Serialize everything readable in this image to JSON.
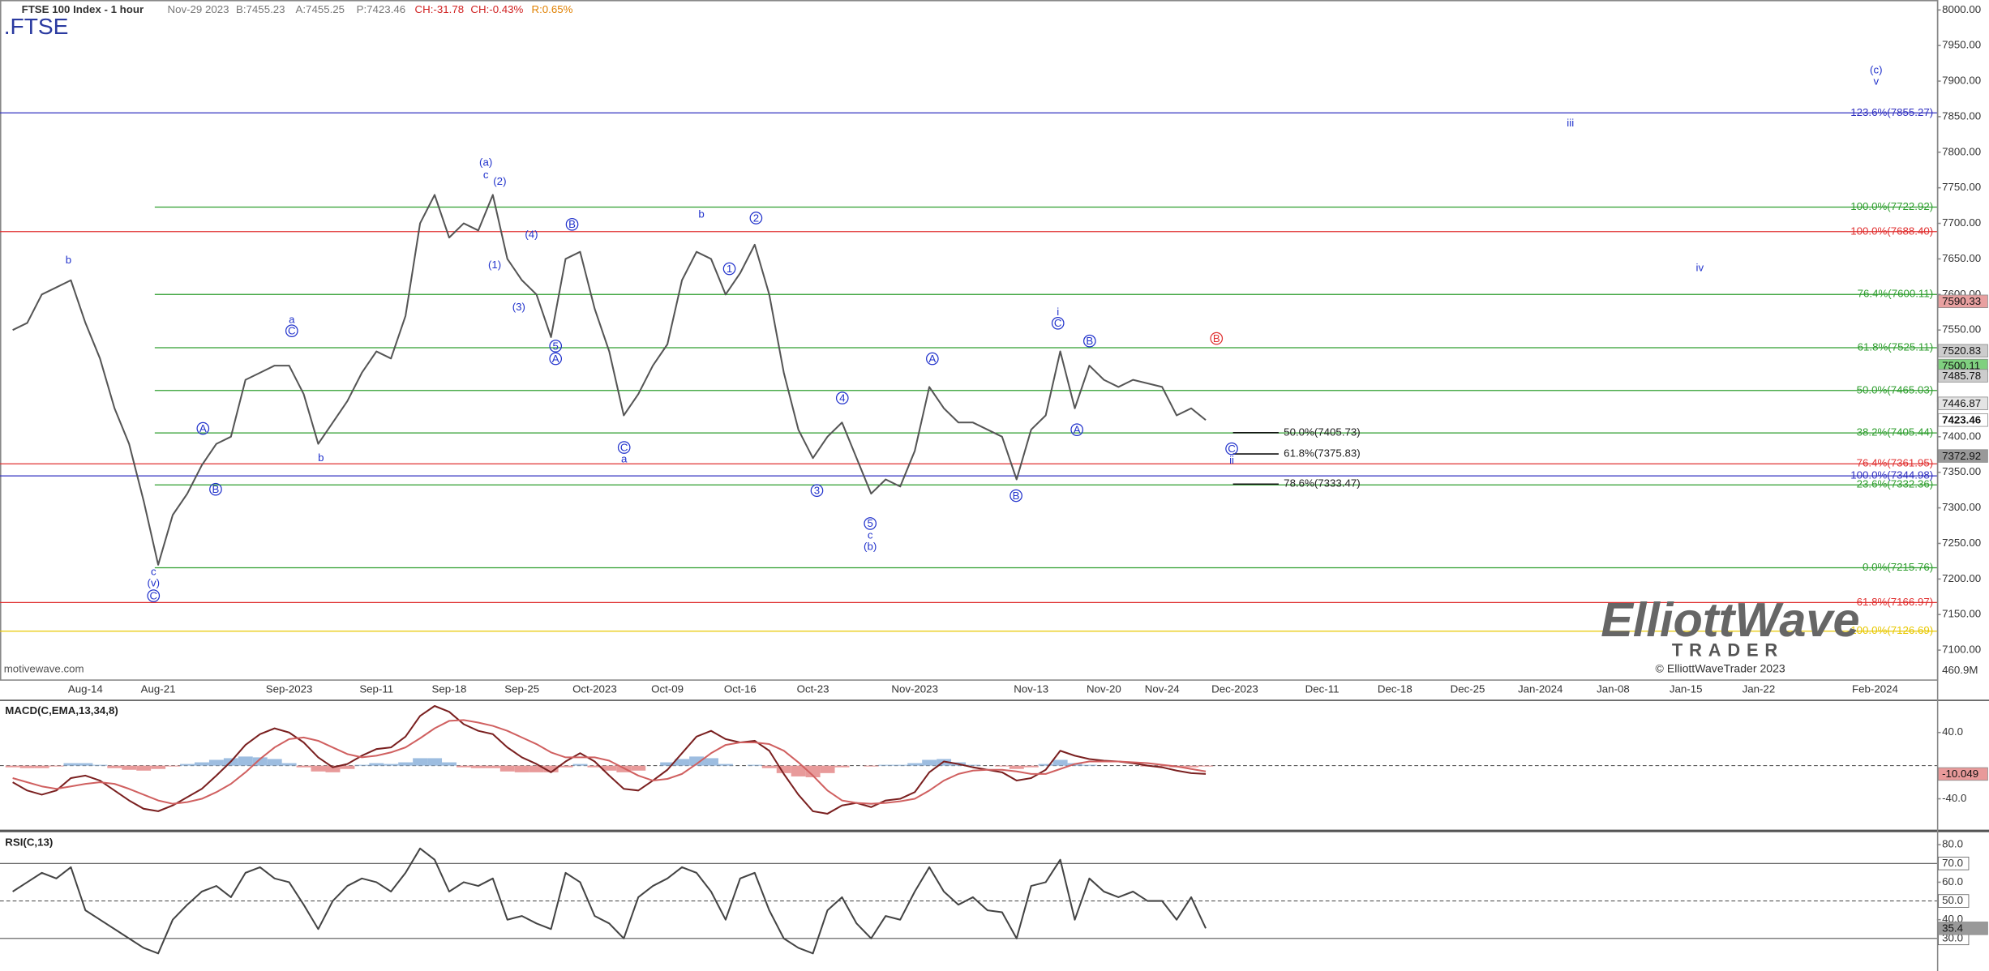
{
  "header": {
    "symbol": ".FTSE",
    "date": "Nov-29 2023",
    "bid": "B:7455.23",
    "ask": "A:7455.25",
    "price": "P:7423.46",
    "change": "CH:-31.78",
    "change_pct": "CH:-0.43%",
    "range": "R:0.65%"
  },
  "footer": {
    "source": "motivewave.com",
    "volume_max": "460.9M"
  },
  "logo": {
    "name": "ElliottWave",
    "subtitle": "TRADER",
    "copyright": "© ElliottWaveTrader 2023"
  },
  "chart_data": {
    "type": "line",
    "title": "FTSE 100 Index - 1 hour",
    "categories": [
      null,
      null,
      null,
      null,
      null,
      "Aug-14",
      null,
      null,
      null,
      null,
      "Aug-21",
      null,
      null,
      null,
      null,
      null,
      null,
      null,
      null,
      "Sep-2023",
      null,
      null,
      null,
      null,
      null,
      "Sep-11",
      null,
      null,
      null,
      null,
      "Sep-18",
      null,
      null,
      null,
      null,
      "Sep-25",
      null,
      null,
      null,
      null,
      "Oct-2023",
      null,
      null,
      null,
      null,
      "Oct-09",
      null,
      null,
      null,
      null,
      "Oct-16",
      null,
      null,
      null,
      null,
      "Oct-23",
      null,
      null,
      null,
      null,
      null,
      null,
      "Nov-2023",
      null,
      null,
      null,
      null,
      null,
      null,
      null,
      "Nov-13",
      null,
      null,
      null,
      null,
      "Nov-20",
      null,
      null,
      null,
      "Nov-24",
      null,
      null,
      null,
      null,
      "Dec-2023",
      null,
      null,
      null,
      null,
      null,
      "Dec-11",
      null,
      null,
      null,
      null,
      "Dec-18",
      null,
      null,
      null,
      null,
      "Dec-25",
      null,
      null,
      null,
      null,
      "Jan-2024",
      null,
      null,
      null,
      null,
      "Jan-08",
      null,
      null,
      null,
      null,
      "Jan-15",
      null,
      null,
      null,
      null,
      "Jan-22",
      null,
      null,
      null,
      null,
      null,
      null,
      null,
      "Feb-2024",
      null,
      null,
      null,
      null
    ],
    "series": [
      {
        "name": ".FTSE",
        "color": "#555555",
        "values": [
          7550,
          7560,
          7600,
          7610,
          7620,
          7560,
          7510,
          7440,
          7390,
          7310,
          7220,
          7290,
          7320,
          7360,
          7390,
          7400,
          7480,
          7490,
          7500,
          7500,
          7460,
          7390,
          7420,
          7450,
          7490,
          7520,
          7510,
          7570,
          7700,
          7740,
          7680,
          7700,
          7690,
          7740,
          7650,
          7620,
          7600,
          7540,
          7650,
          7660,
          7580,
          7520,
          7430,
          7460,
          7500,
          7530,
          7620,
          7660,
          7650,
          7600,
          7630,
          7670,
          7600,
          7490,
          7410,
          7370,
          7400,
          7420,
          7370,
          7320,
          7340,
          7330,
          7380,
          7470,
          7440,
          7420,
          7420,
          7410,
          7400,
          7340,
          7410,
          7430,
          7520,
          7440,
          7500,
          7480,
          7470,
          7480,
          7475,
          7470,
          7430,
          7440,
          7423.46,
          null,
          null,
          null,
          null,
          null,
          null,
          null,
          null,
          null,
          null,
          null,
          null,
          null,
          null,
          null,
          null,
          null,
          null,
          null,
          null,
          null,
          null,
          null,
          null,
          null,
          null,
          null,
          null,
          null,
          null,
          null,
          null,
          null,
          null,
          null,
          null,
          null,
          null,
          null,
          null,
          null,
          null,
          null,
          null,
          null,
          null,
          null,
          null,
          null,
          null
        ]
      }
    ],
    "ylim": [
      7057,
      8014
    ],
    "yticks": [
      {
        "value": 8000,
        "label": "8000.00"
      },
      {
        "value": 7950,
        "label": "7950.00"
      },
      {
        "value": 7900,
        "label": "7900.00"
      },
      {
        "value": 7850,
        "label": "7850.00"
      },
      {
        "value": 7800,
        "label": "7800.00"
      },
      {
        "value": 7750,
        "label": "7750.00"
      },
      {
        "value": 7700,
        "label": "7700.00"
      },
      {
        "value": 7650,
        "label": "7650.00"
      },
      {
        "value": 7600,
        "label": "7600.00"
      },
      {
        "value": 7550,
        "label": "7550.00"
      },
      {
        "value": 7500,
        "label": "7500.00"
      },
      {
        "value": 7450,
        "label": "7450.00"
      },
      {
        "value": 7400,
        "label": "7400.00"
      },
      {
        "value": 7350,
        "label": "7350.00"
      },
      {
        "value": 7300,
        "label": "7300.00"
      },
      {
        "value": 7250,
        "label": "7250.00"
      },
      {
        "value": 7200,
        "label": "7200.00"
      },
      {
        "value": 7150,
        "label": "7150.00"
      },
      {
        "value": 7100,
        "label": "7100.00"
      }
    ],
    "levels": [
      {
        "value": 7722.92,
        "label": "100.0%(7722.92)",
        "color": "#2e9e2e"
      },
      {
        "value": 7600.11,
        "label": "76.4%(7600.11)",
        "color": "#2e9e2e"
      },
      {
        "value": 7525.11,
        "label": "61.8%(7525.11)",
        "color": "#2e9e2e"
      },
      {
        "value": 7465.03,
        "label": "50.0%(7465.03)",
        "color": "#2e9e2e"
      },
      {
        "value": 7405.44,
        "label": "38.2%(7405.44)",
        "color": "#2e9e2e"
      },
      {
        "value": 7332.36,
        "label": "23.6%(7332.36)",
        "color": "#2e9e2e"
      },
      {
        "value": 7215.76,
        "label": "0.0%(7215.76)",
        "color": "#2e9e2e"
      },
      {
        "value": 7688.4,
        "label": "100.0%(7688.40)",
        "color": "#e03030"
      },
      {
        "value": 7361.95,
        "label": "76.4%(7361.95)",
        "color": "#e03030"
      },
      {
        "value": 7166.97,
        "label": "61.8%(7166.97)",
        "color": "#e03030"
      },
      {
        "value": 7855.27,
        "label": "123.6%(7855.27)",
        "color": "#3030c0"
      },
      {
        "value": 7344.98,
        "label": "100.0%(7344.98)",
        "color": "#3030c0"
      },
      {
        "value": 7126.69,
        "label": "100.0%(7126.69)",
        "color": "#e8c800"
      }
    ],
    "projections": [
      {
        "value": 7405.73,
        "label": "50.0%(7405.73)"
      },
      {
        "value": 7375.83,
        "label": "61.8%(7375.83)"
      },
      {
        "value": 7333.47,
        "label": "78.6%(7333.47)"
      }
    ],
    "price_tags": [
      {
        "value": 7590.33,
        "color": "#e8a0a0"
      },
      {
        "value": 7520.83,
        "color": "#cccccc"
      },
      {
        "value": 7500.11,
        "color": "#7fd07f"
      },
      {
        "value": 7485.78,
        "color": "#cccccc"
      },
      {
        "value": 7446.87,
        "color": "#e4e4e4"
      },
      {
        "value": 7423.46,
        "color": "#ffffff"
      },
      {
        "value": 7372.92,
        "color": "#999999"
      }
    ],
    "wave_labels": [
      "b",
      "c",
      "(v)",
      "C",
      "A",
      "B",
      "a",
      "C",
      "b",
      "(a)",
      "c",
      "(2)",
      "(1)",
      "(4)",
      "(3)",
      "B",
      "5",
      "A",
      "C",
      "a",
      "b",
      "2",
      "1",
      "4",
      "3",
      "5",
      "c",
      "(b)",
      "A",
      "B",
      "i",
      "C",
      "B",
      "A",
      "B",
      "C",
      "ii",
      "(c)",
      "v",
      "iii",
      "iv"
    ],
    "panels": [
      {
        "type": "line",
        "title": "MACD(C,EMA,13,34,8)",
        "ylim": [
          -78,
          78
        ],
        "yticks": [
          {
            "value": 40,
            "label": "40.0"
          },
          {
            "value": -40,
            "label": "-40.0"
          }
        ],
        "series": [
          {
            "color": "#7a2020",
            "values": [
              -20,
              -30,
              -35,
              -30,
              -15,
              -12,
              -18,
              -30,
              -42,
              -52,
              -55,
              -48,
              -38,
              -28,
              -12,
              5,
              25,
              38,
              45,
              40,
              28,
              10,
              -2,
              2,
              12,
              20,
              22,
              35,
              60,
              72,
              65,
              50,
              42,
              38,
              22,
              10,
              2,
              -8,
              5,
              15,
              5,
              -12,
              -28,
              -30,
              -18,
              -5,
              15,
              35,
              42,
              32,
              28,
              30,
              18,
              -10,
              -35,
              -55,
              -58,
              -48,
              -45,
              -50,
              -42,
              -40,
              -32,
              -8,
              5,
              2,
              -2,
              -5,
              -8,
              -18,
              -15,
              -5,
              18,
              12,
              8,
              6,
              5,
              3,
              0,
              -2,
              -6,
              -9,
              -10.049,
              null,
              null,
              null,
              null,
              null,
              null,
              null,
              null,
              null,
              null,
              null,
              null,
              null,
              null,
              null,
              null,
              null,
              null,
              null,
              null,
              null,
              null,
              null,
              null,
              null,
              null,
              null,
              null,
              null,
              null,
              null,
              null,
              null,
              null,
              null,
              null,
              null,
              null,
              null,
              null,
              null,
              null,
              null,
              null,
              null,
              null,
              null,
              null,
              null,
              null
            ]
          },
          {
            "color": "#d06060",
            "values": [
              -15,
              -20,
              -25,
              -28,
              -25,
              -22,
              -20,
              -22,
              -28,
              -35,
              -42,
              -46,
              -44,
              -40,
              -32,
              -22,
              -8,
              8,
              22,
              32,
              34,
              30,
              22,
              14,
              10,
              12,
              16,
              22,
              33,
              45,
              54,
              55,
              52,
              48,
              42,
              34,
              26,
              16,
              10,
              10,
              10,
              6,
              -3,
              -12,
              -18,
              -16,
              -10,
              2,
              15,
              25,
              28,
              28,
              26,
              18,
              4,
              -12,
              -30,
              -42,
              -45,
              -46,
              -45,
              -43,
              -40,
              -30,
              -18,
              -10,
              -6,
              -5,
              -5,
              -7,
              -10,
              -10,
              -4,
              2,
              5,
              5,
              5,
              4,
              3,
              1,
              -1,
              -4,
              -7,
              null,
              null,
              null,
              null,
              null,
              null,
              null,
              null,
              null,
              null,
              null,
              null,
              null,
              null,
              null,
              null,
              null,
              null,
              null,
              null,
              null,
              null,
              null,
              null,
              null,
              null,
              null,
              null,
              null,
              null,
              null,
              null,
              null,
              null,
              null,
              null,
              null,
              null,
              null,
              null,
              null,
              null,
              null,
              null,
              null,
              null,
              null,
              null,
              null,
              null
            ]
          }
        ],
        "histogram": {
          "color_up": "#9dbde0",
          "color_down": "#e89a9a",
          "values": [
            -2,
            -3,
            -3,
            -1,
            3,
            3,
            1,
            -3,
            -5,
            -6,
            -4,
            -1,
            2,
            4,
            7,
            9,
            11,
            10,
            8,
            3,
            -2,
            -7,
            -8,
            -4,
            1,
            3,
            2,
            4,
            9,
            9,
            4,
            -2,
            -3,
            -3,
            -7,
            -8,
            -8,
            -8,
            -2,
            2,
            -2,
            -6,
            -8,
            -6,
            0,
            4,
            8,
            11,
            9,
            2,
            0,
            1,
            -3,
            -9,
            -13,
            -14,
            -9,
            -2,
            0,
            -1,
            1,
            1,
            3,
            7,
            8,
            4,
            1,
            0,
            -1,
            -4,
            -2,
            2,
            7,
            3,
            1,
            0,
            0,
            0,
            -1,
            -1,
            -2,
            -2,
            -1,
            null,
            null,
            null,
            null,
            null,
            null,
            null,
            null,
            null,
            null,
            null,
            null,
            null,
            null,
            null,
            null,
            null,
            null,
            null,
            null,
            null,
            null,
            null,
            null,
            null,
            null,
            null,
            null,
            null,
            null,
            null,
            null,
            null,
            null,
            null,
            null,
            null,
            null,
            null,
            null,
            null,
            null,
            null,
            null,
            null,
            null,
            null,
            null,
            null,
            null
          ]
        },
        "tag": {
          "value": -10.049,
          "color": "#e89a9a"
        }
      },
      {
        "type": "line",
        "title": "RSI(C,13)",
        "ylim": [
          14,
          87
        ],
        "yticks": [
          {
            "value": 80,
            "label": "80.0"
          },
          {
            "value": 70,
            "label": "70.0",
            "boxed": true
          },
          {
            "value": 60,
            "label": "60.0"
          },
          {
            "value": 50,
            "label": "50.0",
            "boxed": true
          },
          {
            "value": 40,
            "label": "40.0"
          },
          {
            "value": 30,
            "label": "30.0",
            "boxed": true
          }
        ],
        "series": [
          {
            "color": "#444444",
            "values": [
              55,
              60,
              65,
              62,
              68,
              45,
              40,
              35,
              30,
              25,
              22,
              40,
              48,
              55,
              58,
              52,
              65,
              68,
              62,
              60,
              48,
              35,
              50,
              58,
              62,
              60,
              55,
              65,
              78,
              72,
              55,
              60,
              58,
              62,
              40,
              42,
              38,
              35,
              65,
              60,
              42,
              38,
              30,
              52,
              58,
              62,
              68,
              65,
              55,
              40,
              62,
              65,
              45,
              30,
              25,
              22,
              45,
              52,
              38,
              30,
              42,
              40,
              55,
              68,
              55,
              48,
              52,
              45,
              44,
              30,
              58,
              60,
              72,
              40,
              62,
              55,
              52,
              55,
              50,
              50,
              40,
              52,
              35.4,
              null,
              null,
              null,
              null,
              null,
              null,
              null,
              null,
              null,
              null,
              null,
              null,
              null,
              null,
              null,
              null,
              null,
              null,
              null,
              null,
              null,
              null,
              null,
              null,
              null,
              null,
              null,
              null,
              null,
              null,
              null,
              null,
              null,
              null,
              null,
              null,
              null,
              null,
              null,
              null,
              null,
              null,
              null,
              null,
              null,
              null,
              null,
              null,
              null,
              null
            ]
          }
        ],
        "tag": {
          "value": 35.4,
          "color": "#999999"
        }
      }
    ]
  }
}
